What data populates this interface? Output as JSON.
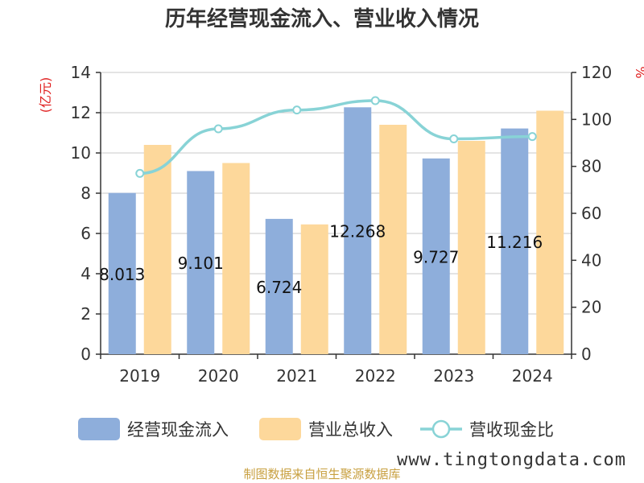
{
  "chart_data": {
    "type": "bar",
    "title": "历年经营现金流入、营业收入情况",
    "categories": [
      "2019",
      "2020",
      "2021",
      "2022",
      "2023",
      "2024"
    ],
    "series": [
      {
        "name": "经营现金流入",
        "axis": "left",
        "color": "#8eaedb",
        "values": [
          8.013,
          9.101,
          6.724,
          12.268,
          9.727,
          11.216
        ],
        "labels": [
          "8.013",
          "9.101",
          "6.724",
          "12.268",
          "9.727",
          "11.216"
        ]
      },
      {
        "name": "营业总收入",
        "axis": "left",
        "color": "#fdd89b",
        "values": [
          10.4,
          9.5,
          6.45,
          11.4,
          10.6,
          12.1
        ]
      },
      {
        "name": "营收现金比",
        "axis": "right",
        "type": "line",
        "color": "#88d3d6",
        "values": [
          77,
          96,
          104,
          108,
          91.7,
          92.7
        ]
      }
    ],
    "y_left": {
      "unit": "(亿元)",
      "ylim": [
        0,
        14
      ],
      "ticks": [
        "0",
        "2",
        "4",
        "6",
        "8",
        "10",
        "12",
        "14"
      ]
    },
    "y_right": {
      "unit": "%",
      "ylim": [
        0,
        120
      ],
      "ticks": [
        "0",
        "20",
        "40",
        "60",
        "80",
        "100",
        "120"
      ]
    },
    "grid": true,
    "legend": "bottom"
  },
  "footer": {
    "source": "制图数据来自恒生聚源数据库",
    "watermark": "www.tingtongdata.com"
  }
}
